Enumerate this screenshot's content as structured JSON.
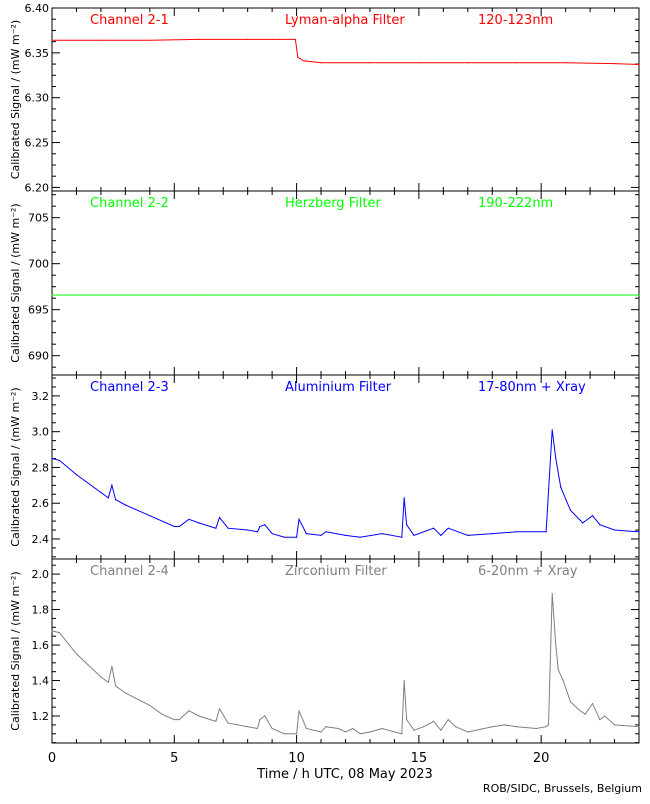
{
  "chart_data": [
    {
      "type": "line",
      "channel": "Channel 2-1",
      "filter": "Lyman-alpha Filter",
      "band": "120-123nm",
      "color": "#ff0000",
      "ylabel": "Calibrated Signal / (mW m⁻²)",
      "ylim": [
        6.196,
        6.4
      ],
      "yticks": [
        6.2,
        6.25,
        6.3,
        6.35,
        6.4
      ],
      "ytick_labels": [
        "6.20",
        "6.25",
        "6.30",
        "6.35",
        "6.40"
      ],
      "points": [
        [
          0,
          6.364
        ],
        [
          2,
          6.364
        ],
        [
          4,
          6.364
        ],
        [
          6,
          6.365
        ],
        [
          8,
          6.365
        ],
        [
          9,
          6.365
        ],
        [
          9.95,
          6.365
        ],
        [
          10.05,
          6.345
        ],
        [
          10.3,
          6.341
        ],
        [
          11,
          6.339
        ],
        [
          13,
          6.339
        ],
        [
          15,
          6.339
        ],
        [
          17,
          6.339
        ],
        [
          19,
          6.339
        ],
        [
          21,
          6.339
        ],
        [
          23,
          6.338
        ],
        [
          24,
          6.337
        ]
      ]
    },
    {
      "type": "line",
      "channel": "Channel 2-2",
      "filter": "Herzberg Filter",
      "band": "190-222nm",
      "color": "#00ff00",
      "ylabel": "Calibrated Signal / (mW m⁻²)",
      "ylim": [
        687.9,
        707.9
      ],
      "yticks": [
        690,
        695,
        700,
        705
      ],
      "ytick_labels": [
        "690",
        "695",
        "700",
        "705"
      ],
      "points": [
        [
          0,
          696.6
        ],
        [
          6,
          696.6
        ],
        [
          12,
          696.6
        ],
        [
          18,
          696.6
        ],
        [
          24,
          696.6
        ]
      ]
    },
    {
      "type": "line",
      "channel": "Channel 2-3",
      "filter": "Aluminium Filter",
      "band": "17-80nm + Xray",
      "color": "#0000ff",
      "ylabel": "Calibrated Signal / (mW m⁻²)",
      "ylim": [
        2.288,
        3.317
      ],
      "yticks": [
        2.4,
        2.6,
        2.8,
        3.0,
        3.2
      ],
      "ytick_labels": [
        "2.4",
        "2.6",
        "2.8",
        "3.0",
        "3.2"
      ],
      "points": [
        [
          0,
          2.85
        ],
        [
          0.3,
          2.84
        ],
        [
          1,
          2.76
        ],
        [
          2,
          2.66
        ],
        [
          2.3,
          2.63
        ],
        [
          2.45,
          2.7
        ],
        [
          2.6,
          2.62
        ],
        [
          3,
          2.59
        ],
        [
          4,
          2.53
        ],
        [
          5,
          2.47
        ],
        [
          5.2,
          2.47
        ],
        [
          5.6,
          2.51
        ],
        [
          6,
          2.49
        ],
        [
          6.7,
          2.46
        ],
        [
          6.85,
          2.52
        ],
        [
          7.2,
          2.46
        ],
        [
          8,
          2.45
        ],
        [
          8.4,
          2.44
        ],
        [
          8.5,
          2.47
        ],
        [
          8.7,
          2.48
        ],
        [
          9,
          2.43
        ],
        [
          9.5,
          2.41
        ],
        [
          10,
          2.41
        ],
        [
          10.1,
          2.51
        ],
        [
          10.4,
          2.43
        ],
        [
          11,
          2.42
        ],
        [
          11.2,
          2.44
        ],
        [
          12,
          2.42
        ],
        [
          12.6,
          2.41
        ],
        [
          13.5,
          2.43
        ],
        [
          14.3,
          2.41
        ],
        [
          14.4,
          2.63
        ],
        [
          14.5,
          2.48
        ],
        [
          14.8,
          2.42
        ],
        [
          15.6,
          2.46
        ],
        [
          15.9,
          2.42
        ],
        [
          16.2,
          2.46
        ],
        [
          17,
          2.42
        ],
        [
          18,
          2.43
        ],
        [
          19,
          2.44
        ],
        [
          20.2,
          2.44
        ],
        [
          20.45,
          3.01
        ],
        [
          20.6,
          2.85
        ],
        [
          20.8,
          2.69
        ],
        [
          21.2,
          2.56
        ],
        [
          21.7,
          2.49
        ],
        [
          22.1,
          2.53
        ],
        [
          22.4,
          2.48
        ],
        [
          23,
          2.45
        ],
        [
          24,
          2.44
        ]
      ]
    },
    {
      "type": "line",
      "channel": "Channel 2-4",
      "filter": "Zirconium Filter",
      "band": "6-20nm + Xray",
      "color": "#808080",
      "ylabel": "Calibrated Signal / (mW m⁻²)",
      "ylim": [
        1.048,
        2.085
      ],
      "yticks": [
        1.2,
        1.4,
        1.6,
        1.8,
        2.0
      ],
      "ytick_labels": [
        "1.2",
        "1.4",
        "1.6",
        "1.8",
        "2.0"
      ],
      "points": [
        [
          0,
          1.68
        ],
        [
          0.3,
          1.67
        ],
        [
          1,
          1.55
        ],
        [
          2,
          1.42
        ],
        [
          2.3,
          1.39
        ],
        [
          2.45,
          1.48
        ],
        [
          2.6,
          1.37
        ],
        [
          3,
          1.33
        ],
        [
          4,
          1.26
        ],
        [
          4.5,
          1.21
        ],
        [
          5,
          1.18
        ],
        [
          5.2,
          1.18
        ],
        [
          5.6,
          1.23
        ],
        [
          6,
          1.2
        ],
        [
          6.7,
          1.17
        ],
        [
          6.85,
          1.24
        ],
        [
          7.2,
          1.16
        ],
        [
          8,
          1.14
        ],
        [
          8.4,
          1.13
        ],
        [
          8.5,
          1.18
        ],
        [
          8.7,
          1.2
        ],
        [
          9,
          1.13
        ],
        [
          9.5,
          1.1
        ],
        [
          10,
          1.1
        ],
        [
          10.1,
          1.23
        ],
        [
          10.4,
          1.13
        ],
        [
          11,
          1.11
        ],
        [
          11.2,
          1.14
        ],
        [
          11.7,
          1.13
        ],
        [
          12,
          1.11
        ],
        [
          12.3,
          1.13
        ],
        [
          12.6,
          1.1
        ],
        [
          13,
          1.11
        ],
        [
          13.5,
          1.13
        ],
        [
          14.3,
          1.1
        ],
        [
          14.4,
          1.4
        ],
        [
          14.5,
          1.18
        ],
        [
          14.8,
          1.12
        ],
        [
          15.2,
          1.14
        ],
        [
          15.6,
          1.17
        ],
        [
          15.9,
          1.12
        ],
        [
          16.2,
          1.18
        ],
        [
          16.5,
          1.14
        ],
        [
          17,
          1.11
        ],
        [
          18,
          1.14
        ],
        [
          18.5,
          1.15
        ],
        [
          19,
          1.14
        ],
        [
          19.8,
          1.13
        ],
        [
          20.2,
          1.14
        ],
        [
          20.3,
          1.15
        ],
        [
          20.45,
          1.89
        ],
        [
          20.6,
          1.6
        ],
        [
          20.7,
          1.46
        ],
        [
          20.9,
          1.4
        ],
        [
          21.2,
          1.28
        ],
        [
          21.5,
          1.24
        ],
        [
          21.8,
          1.21
        ],
        [
          22.1,
          1.27
        ],
        [
          22.4,
          1.18
        ],
        [
          22.6,
          1.2
        ],
        [
          23,
          1.15
        ],
        [
          24,
          1.14
        ]
      ]
    }
  ],
  "xaxis": {
    "xlabel": "Time / h UTC, 08 May 2023",
    "xlim": [
      0,
      24
    ],
    "xticks": [
      0,
      5,
      10,
      15,
      20
    ],
    "xtick_labels": [
      "0",
      "5",
      "10",
      "15",
      "20"
    ]
  },
  "credit": "ROB/SIDC, Brussels, Belgium"
}
